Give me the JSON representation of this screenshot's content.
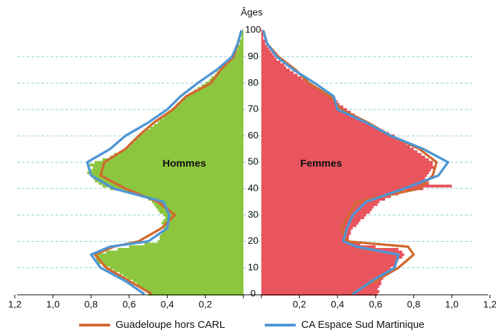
{
  "chart_data": {
    "type": "pyramid",
    "title": "Âges",
    "ages": [
      0,
      1,
      2,
      3,
      4,
      5,
      6,
      7,
      8,
      9,
      10,
      11,
      12,
      13,
      14,
      15,
      16,
      17,
      18,
      19,
      20,
      21,
      22,
      23,
      24,
      25,
      26,
      27,
      28,
      29,
      30,
      31,
      32,
      33,
      34,
      35,
      36,
      37,
      38,
      39,
      40,
      41,
      42,
      43,
      44,
      45,
      46,
      47,
      48,
      49,
      50,
      51,
      52,
      53,
      54,
      55,
      56,
      57,
      58,
      59,
      60,
      61,
      62,
      63,
      64,
      65,
      66,
      67,
      68,
      69,
      70,
      71,
      72,
      73,
      74,
      75,
      76,
      77,
      78,
      79,
      80,
      81,
      82,
      83,
      84,
      85,
      86,
      87,
      88,
      89,
      90,
      91,
      92,
      93,
      94,
      95,
      96,
      97,
      98,
      99,
      100
    ],
    "bars": [
      {
        "name": "Hommes",
        "side": "left",
        "color": "#8cc63f",
        "values": [
          0.5,
          0.51,
          0.53,
          0.55,
          0.56,
          0.58,
          0.61,
          0.63,
          0.65,
          0.68,
          0.7,
          0.74,
          0.77,
          0.78,
          0.77,
          0.78,
          0.72,
          0.66,
          0.6,
          0.52,
          0.45,
          0.44,
          0.44,
          0.43,
          0.42,
          0.42,
          0.41,
          0.43,
          0.42,
          0.41,
          0.42,
          0.44,
          0.45,
          0.46,
          0.47,
          0.48,
          0.5,
          0.53,
          0.55,
          0.63,
          0.7,
          0.74,
          0.76,
          0.78,
          0.79,
          0.8,
          0.82,
          0.8,
          0.79,
          0.81,
          0.78,
          0.74,
          0.7,
          0.68,
          0.64,
          0.62,
          0.6,
          0.59,
          0.57,
          0.56,
          0.55,
          0.53,
          0.51,
          0.49,
          0.47,
          0.45,
          0.44,
          0.42,
          0.41,
          0.39,
          0.38,
          0.36,
          0.35,
          0.33,
          0.32,
          0.3,
          0.28,
          0.26,
          0.24,
          0.22,
          0.2,
          0.18,
          0.17,
          0.15,
          0.14,
          0.12,
          0.11,
          0.09,
          0.08,
          0.06,
          0.05,
          0.04,
          0.04,
          0.03,
          0.03,
          0.02,
          0.02,
          0.01,
          0.01,
          0.01,
          0.005
        ]
      },
      {
        "name": "Femmes",
        "side": "right",
        "color": "#e8555d",
        "values": [
          0.61,
          0.62,
          0.61,
          0.62,
          0.63,
          0.63,
          0.64,
          0.65,
          0.66,
          0.67,
          0.68,
          0.7,
          0.71,
          0.72,
          0.74,
          0.75,
          0.74,
          0.72,
          0.6,
          0.52,
          0.45,
          0.46,
          0.46,
          0.47,
          0.47,
          0.48,
          0.5,
          0.51,
          0.52,
          0.54,
          0.55,
          0.57,
          0.58,
          0.59,
          0.61,
          0.62,
          0.65,
          0.68,
          0.72,
          0.75,
          0.85,
          1.0,
          0.88,
          0.87,
          0.86,
          0.87,
          0.88,
          0.89,
          0.91,
          0.9,
          0.9,
          0.88,
          0.86,
          0.84,
          0.82,
          0.8,
          0.78,
          0.76,
          0.74,
          0.72,
          0.7,
          0.67,
          0.64,
          0.61,
          0.58,
          0.55,
          0.53,
          0.51,
          0.49,
          0.47,
          0.45,
          0.43,
          0.41,
          0.4,
          0.38,
          0.36,
          0.34,
          0.32,
          0.29,
          0.27,
          0.25,
          0.23,
          0.21,
          0.19,
          0.17,
          0.15,
          0.13,
          0.12,
          0.1,
          0.08,
          0.07,
          0.06,
          0.05,
          0.04,
          0.03,
          0.02,
          0.02,
          0.01,
          0.01,
          0.01,
          0.005
        ]
      }
    ],
    "line_ages": [
      0,
      5,
      10,
      15,
      18,
      20,
      25,
      30,
      35,
      40,
      45,
      50,
      55,
      60,
      65,
      70,
      75,
      80,
      85,
      90,
      95,
      100
    ],
    "series": [
      {
        "name": "Guadeloupe hors CARL",
        "color": "#d2692f",
        "men": [
          0.48,
          0.6,
          0.72,
          0.78,
          0.68,
          0.55,
          0.43,
          0.36,
          0.45,
          0.62,
          0.75,
          0.73,
          0.62,
          0.55,
          0.47,
          0.37,
          0.3,
          0.17,
          0.12,
          0.05,
          0.03,
          0.01
        ],
        "women": [
          0.47,
          0.6,
          0.72,
          0.8,
          0.77,
          0.45,
          0.42,
          0.46,
          0.5,
          0.83,
          0.9,
          0.92,
          0.83,
          0.68,
          0.56,
          0.42,
          0.36,
          0.25,
          0.18,
          0.09,
          0.03,
          0.01
        ]
      },
      {
        "name": "CA Espace Sud Martinique",
        "color": "#4f96d4",
        "men": [
          0.52,
          0.62,
          0.75,
          0.8,
          0.7,
          0.5,
          0.4,
          0.39,
          0.42,
          0.68,
          0.8,
          0.82,
          0.7,
          0.62,
          0.5,
          0.4,
          0.33,
          0.24,
          0.14,
          0.06,
          0.03,
          0.01
        ],
        "women": [
          0.48,
          0.58,
          0.7,
          0.72,
          0.5,
          0.43,
          0.45,
          0.48,
          0.55,
          0.75,
          0.93,
          0.98,
          0.85,
          0.68,
          0.55,
          0.4,
          0.38,
          0.28,
          0.17,
          0.08,
          0.03,
          0.01
        ]
      }
    ],
    "xlim": [
      0,
      1.2
    ],
    "xticks": [
      {
        "value": 0.2,
        "label": "0,2"
      },
      {
        "value": 0.4,
        "label": "0,4"
      },
      {
        "value": 0.6,
        "label": "0,6"
      },
      {
        "value": 0.8,
        "label": "0,8"
      },
      {
        "value": 1.0,
        "label": "1,0"
      },
      {
        "value": 1.2,
        "label": "1,2"
      }
    ],
    "ylim": [
      0,
      100
    ],
    "yticks": [
      0,
      10,
      20,
      30,
      40,
      50,
      60,
      70,
      80,
      90,
      100
    ],
    "grid": true,
    "legend": "bottom"
  }
}
